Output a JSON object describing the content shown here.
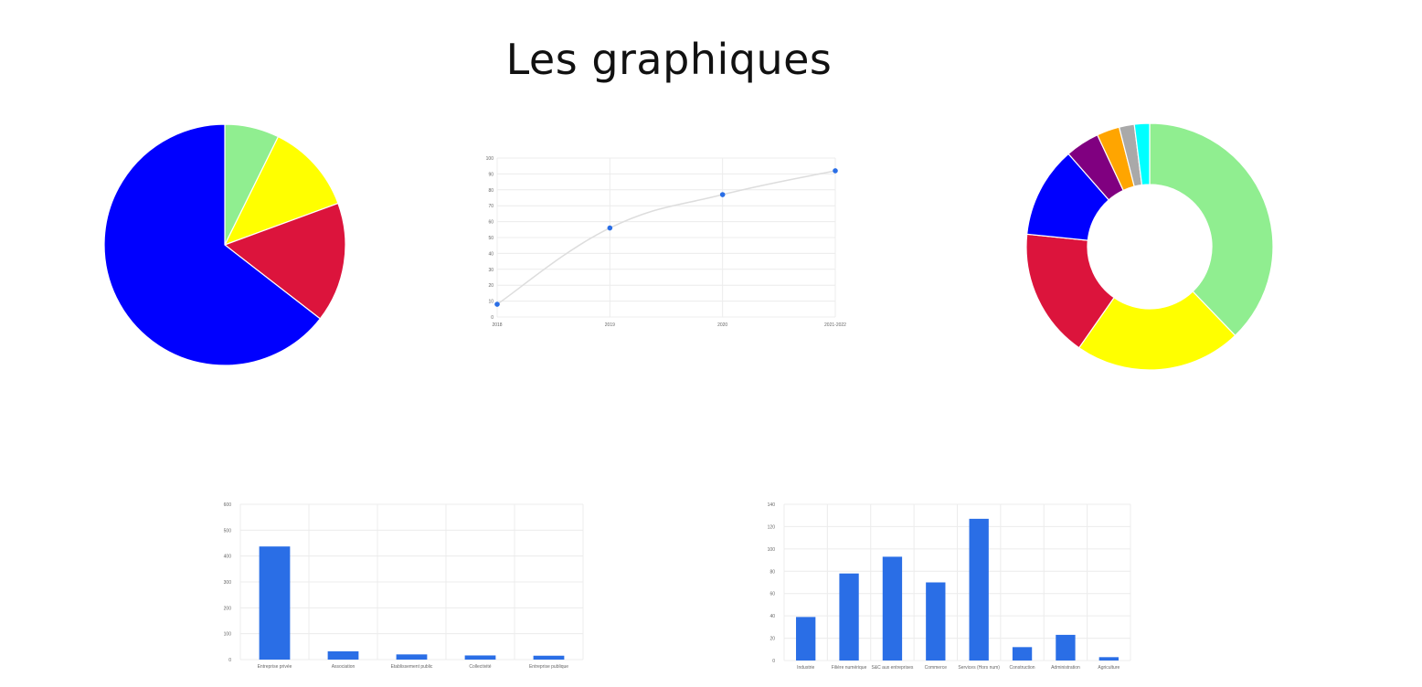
{
  "page": {
    "title": "Les graphiques"
  },
  "chart_data": [
    {
      "type": "pie",
      "slices": [
        {
          "value": 7.3,
          "color": "#90ee90"
        },
        {
          "value": 12.1,
          "color": "#ffff00"
        },
        {
          "value": 16.1,
          "color": "#dc143c"
        },
        {
          "value": 64.5,
          "color": "#0000ff"
        }
      ]
    },
    {
      "type": "line",
      "categories": [
        "2018",
        "2019",
        "2020",
        "2021-2022"
      ],
      "values": [
        8,
        56,
        77,
        92
      ],
      "ylim": [
        0,
        100
      ],
      "yticks": [
        0,
        10,
        20,
        30,
        40,
        50,
        60,
        70,
        80,
        90,
        100
      ],
      "point_color": "#2a6ee6",
      "line_color": "#dddddd"
    },
    {
      "type": "pie",
      "donut": true,
      "slices": [
        {
          "value": 38,
          "color": "#90ee90"
        },
        {
          "value": 22,
          "color": "#ffff00"
        },
        {
          "value": 17,
          "color": "#dc143c"
        },
        {
          "value": 12,
          "color": "#0000ff"
        },
        {
          "value": 4.5,
          "color": "#800080"
        },
        {
          "value": 3,
          "color": "#ffa500"
        },
        {
          "value": 2,
          "color": "#a9a9a9"
        },
        {
          "value": 2,
          "color": "#00ffff"
        }
      ]
    },
    {
      "type": "bar",
      "categories": [
        "Entreprise privée",
        "Association",
        "Etablissement public",
        "Collectivité",
        "Entreprise publique"
      ],
      "values": [
        437,
        32,
        20,
        16,
        15
      ],
      "ylim": [
        0,
        600
      ],
      "yticks": [
        0,
        100,
        200,
        300,
        400,
        500,
        600
      ],
      "bar_color": "#2a6ee6"
    },
    {
      "type": "bar",
      "categories": [
        "Industrie",
        "Filière numérique",
        "S&C aux entreprises",
        "Commerce",
        "Services (Hors num)",
        "Construction",
        "Administration",
        "Agriculture"
      ],
      "values": [
        39,
        78,
        93,
        70,
        127,
        12,
        23,
        3
      ],
      "ylim": [
        0,
        140
      ],
      "yticks": [
        0,
        20,
        40,
        60,
        80,
        100,
        120,
        140
      ],
      "bar_color": "#2a6ee6"
    }
  ]
}
